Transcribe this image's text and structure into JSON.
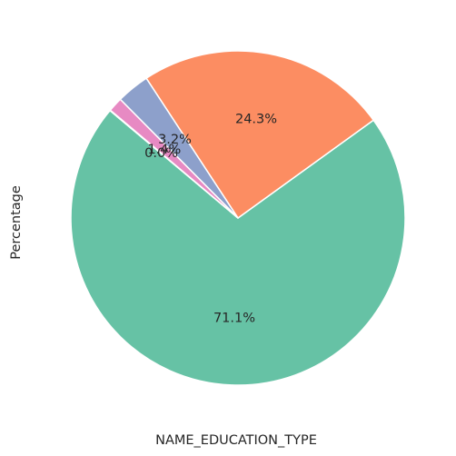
{
  "chart_data": {
    "type": "pie",
    "title": "",
    "xlabel": "NAME_EDUCATION_TYPE",
    "ylabel": "Percentage",
    "start_angle_deg": 140,
    "direction": "counterclockwise",
    "legend": "none",
    "slices": [
      {
        "value": 71.1,
        "label": "71.1%",
        "color": "#66c2a5"
      },
      {
        "value": 24.3,
        "label": "24.3%",
        "color": "#fc8d62"
      },
      {
        "value": 3.2,
        "label": "3.2%",
        "color": "#8da0cb"
      },
      {
        "value": 1.4,
        "label": "1.4%",
        "color": "#e78ac3"
      },
      {
        "value": 0.05,
        "label": "0.0%",
        "color": "#a6d854"
      }
    ]
  }
}
